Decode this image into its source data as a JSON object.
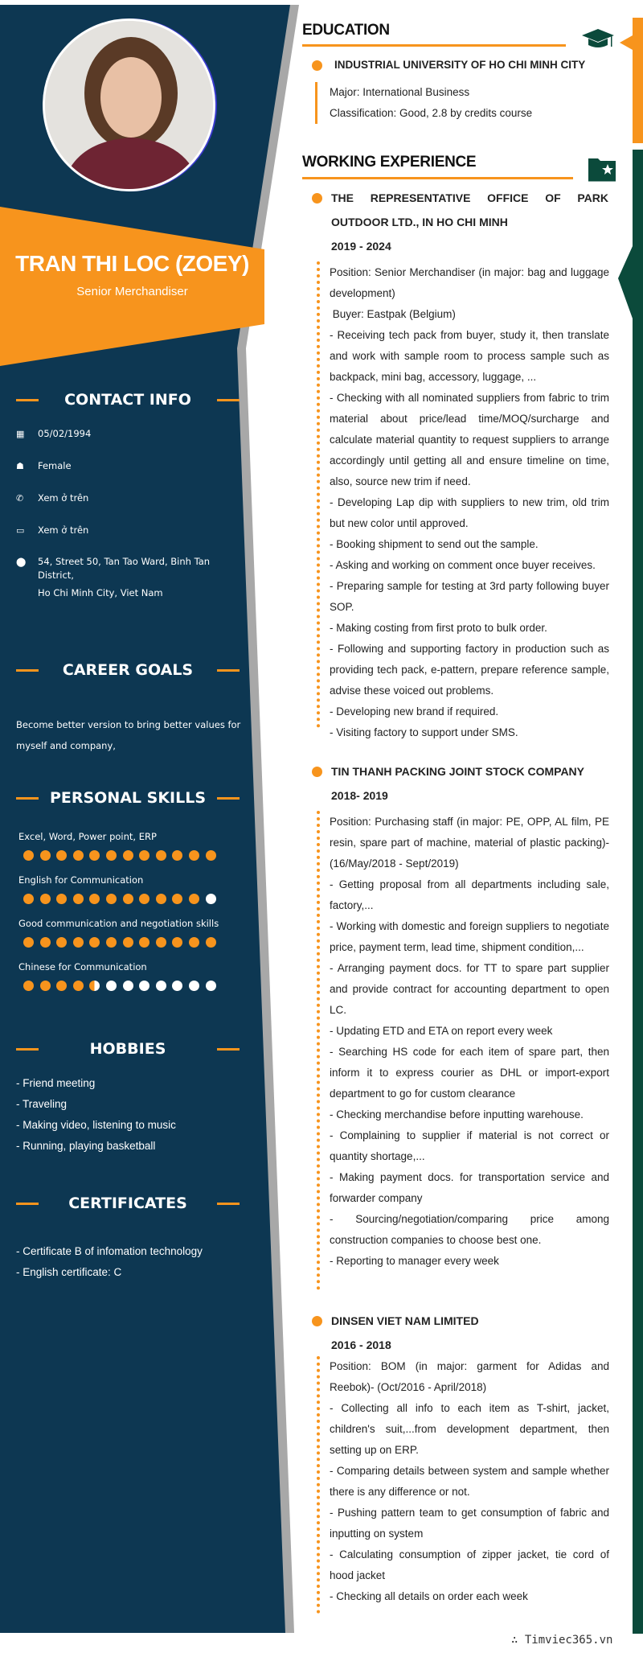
{
  "profile": {
    "name": "TRAN THI LOC (ZOEY)",
    "title": "Senior Merchandiser"
  },
  "colors": {
    "navy": "#0d3752",
    "orange": "#f7941d",
    "green": "#0b4a3b",
    "gray": "#a8a8a8"
  },
  "contact": {
    "heading": "CONTACT INFO",
    "items": [
      {
        "icon": "calendar-icon",
        "text": "05/02/1994"
      },
      {
        "icon": "person-icon",
        "text": "Female"
      },
      {
        "icon": "phone-icon",
        "text": "Xem ở trên"
      },
      {
        "icon": "email-icon",
        "text": "Xem ở trên"
      },
      {
        "icon": "location-icon",
        "text": "54, Street 50, Tan Tao Ward, Binh Tan District,",
        "text2": "Ho Chi Minh City, Viet Nam"
      }
    ]
  },
  "career": {
    "heading": "CAREER GOALS",
    "text": "Become better version to bring better values for myself and company,"
  },
  "skills": {
    "heading": "PERSONAL SKILLS",
    "items": [
      {
        "label": "Excel, Word, Power point, ERP",
        "level": 12,
        "max": 12
      },
      {
        "label": "English for Communication",
        "level": 11,
        "max": 12
      },
      {
        "label": "Good communication and negotiation skills",
        "level": 12,
        "max": 12
      },
      {
        "label": "Chinese for Communication",
        "level": 4.5,
        "max": 12
      }
    ]
  },
  "hobbies": {
    "heading": "HOBBIES",
    "items": [
      "- Friend meeting",
      "- Traveling",
      "- Making video, listening to music",
      "- Running, playing basketball"
    ]
  },
  "certificates": {
    "heading": "CERTIFICATES",
    "items": [
      "- Certificate B of infomation technology",
      "- English certificate: C"
    ]
  },
  "education": {
    "heading": "EDUCATION",
    "icon": "graduation-cap-icon",
    "school": "INDUSTRIAL UNIVERSITY OF HO CHI MINH CITY",
    "major": "Major: International Business",
    "classification": "Classification: Good, 2.8 by credits course"
  },
  "experience": {
    "heading": "WORKING EXPERIENCE",
    "icon": "folder-star-icon",
    "jobs": [
      {
        "company": "THE REPRESENTATIVE OFFICE OF PARK OUTDOOR LTD., IN HO CHI MINH",
        "period": "2019 - 2024",
        "lines": [
          "Position: Senior Merchandiser (in major: bag and luggage development)",
          " Buyer: Eastpak (Belgium)",
          "- Receiving tech pack from buyer, study it, then translate and work with sample room to process sample such as backpack, mini bag, accessory, luggage, ...",
          "- Checking with all nominated suppliers from fabric to trim material about price/lead time/MOQ/surcharge and calculate material quantity to request suppliers to arrange accordingly until getting all and ensure timeline on time, also, source new trim if need.",
          "- Developing Lap dip with suppliers to new trim, old trim but new color until approved.",
          "- Booking shipment to send out the sample.",
          "- Asking and working on comment once buyer receives.",
          "- Preparing sample for testing at 3rd party following buyer SOP.",
          "- Making costing from first proto to bulk order.",
          "- Following and supporting factory in production such as providing tech pack, e-pattern, prepare reference sample, advise these voiced out problems.",
          "- Developing new brand if required.",
          "- Visiting factory to support under SMS."
        ]
      },
      {
        "company": "TIN THANH PACKING JOINT STOCK COMPANY",
        "period": "2018- 2019",
        "lines": [
          "Position: Purchasing staff (in major: PE, OPP, AL film, PE resin, spare part of machine, material of plastic packing)- (16/May/2018 - Sept/2019)",
          "- Getting proposal from all departments including sale, factory,...",
          "- Working with domestic and foreign suppliers to negotiate price, payment term, lead time, shipment condition,...",
          "- Arranging payment docs. for TT to spare part supplier and provide contract for accounting department to open LC.",
          "- Updating ETD and ETA on report every week",
          "- Searching HS code for each item of spare part, then inform it to express courier as DHL or import-export department to go for custom clearance",
          "- Checking merchandise before inputting warehouse.",
          "- Complaining to supplier if material is not correct or quantity shortage,...",
          "- Making payment docs. for transportation service and forwarder company",
          "- Sourcing/negotiation/comparing price among construction companies to choose best one.",
          "- Reporting to manager every week"
        ]
      },
      {
        "company": "DINSEN VIET NAM LIMITED",
        "period": "2016 - 2018",
        "lines": [
          "Position: BOM (in major: garment for Adidas and Reebok)- (Oct/2016 - April/2018)",
          "- Collecting all info to each item as T-shirt, jacket, children's suit,...from development department, then setting up on ERP.",
          "- Comparing details between system and sample whether there is any difference or not.",
          "- Pushing pattern team to get consumption of fabric and inputting on system",
          "- Calculating consumption of zipper jacket, tie cord of hood jacket",
          "- Checking all details on order each week"
        ]
      }
    ]
  },
  "watermark": "∴ Timviec365.vn"
}
